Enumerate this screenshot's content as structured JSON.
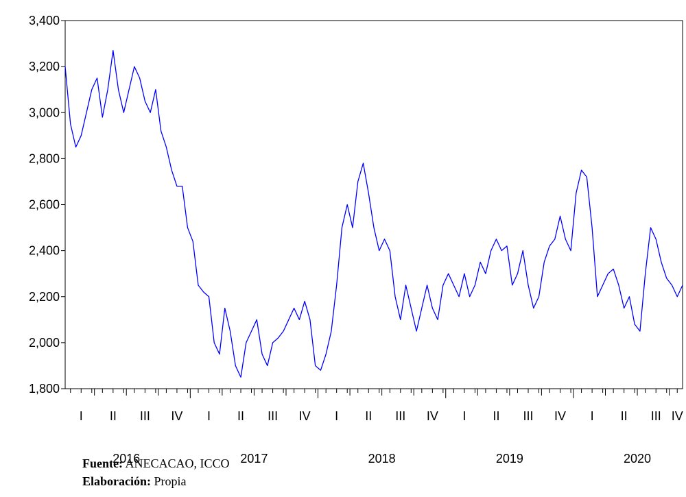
{
  "chart_data": {
    "type": "line",
    "categories": [
      null,
      null,
      null,
      "I",
      null,
      null,
      null,
      null,
      null,
      "II",
      null,
      null,
      null,
      null,
      null,
      "III",
      null,
      null,
      null,
      null,
      null,
      "IV",
      null,
      null,
      null,
      null,
      null,
      "I",
      null,
      null,
      null,
      null,
      null,
      "II",
      null,
      null,
      null,
      null,
      null,
      "III",
      null,
      null,
      null,
      null,
      null,
      "IV",
      null,
      null,
      null,
      null,
      null,
      "I",
      null,
      null,
      null,
      null,
      null,
      "II",
      null,
      null,
      null,
      null,
      null,
      "III",
      null,
      null,
      null,
      null,
      null,
      "IV",
      null,
      null,
      null,
      null,
      null,
      "I",
      null,
      null,
      null,
      null,
      null,
      "II",
      null,
      null,
      null,
      null,
      null,
      "III",
      null,
      null,
      null,
      null,
      null,
      "IV",
      null,
      null,
      null,
      null,
      null,
      "I",
      null,
      null,
      null,
      null,
      null,
      "II",
      null,
      null,
      null,
      null,
      null,
      "III",
      null,
      null,
      null,
      "IV",
      null
    ],
    "years": [
      "2016",
      "2017",
      "2018",
      "2019",
      "2020"
    ],
    "series": [
      {
        "color": "#0000ff",
        "values": [
          3200,
          2950,
          2850,
          2900,
          3000,
          3100,
          3150,
          2980,
          3100,
          3270,
          3100,
          3000,
          3100,
          3200,
          3150,
          3050,
          3000,
          3100,
          2920,
          2850,
          2750,
          2680,
          2680,
          2500,
          2440,
          2250,
          2220,
          2200,
          2000,
          1950,
          2150,
          2050,
          1900,
          1850,
          2000,
          2050,
          2100,
          1950,
          1900,
          2000,
          2020,
          2050,
          2100,
          2150,
          2100,
          2180,
          2100,
          1900,
          1880,
          1950,
          2050,
          2250,
          2500,
          2600,
          2500,
          2700,
          2780,
          2650,
          2500,
          2400,
          2450,
          2400,
          2200,
          2100,
          2250,
          2150,
          2050,
          2150,
          2250,
          2150,
          2100,
          2250,
          2300,
          2250,
          2200,
          2300,
          2200,
          2250,
          2350,
          2300,
          2400,
          2450,
          2400,
          2420,
          2250,
          2300,
          2400,
          2250,
          2150,
          2200,
          2350,
          2420,
          2450,
          2550,
          2450,
          2400,
          2650,
          2750,
          2720,
          2500,
          2200,
          2250,
          2300,
          2320,
          2250,
          2150,
          2200,
          2080,
          2050,
          2300,
          2500,
          2450,
          2350,
          2280,
          2250,
          2200,
          2250
        ]
      }
    ],
    "ylim": [
      1800,
      3400
    ],
    "yticks": [
      {
        "value": 1800,
        "label": "1,800"
      },
      {
        "value": 2000,
        "label": "2,000"
      },
      {
        "value": 2200,
        "label": "2,200"
      },
      {
        "value": 2400,
        "label": "2,400"
      },
      {
        "value": 2600,
        "label": "2,600"
      },
      {
        "value": 2800,
        "label": "2,800"
      },
      {
        "value": 3000,
        "label": "3,000"
      },
      {
        "value": 3200,
        "label": "3,200"
      },
      {
        "value": 3400,
        "label": "3,400"
      }
    ]
  },
  "footer": {
    "source_label": "Fuente:",
    "source": "ANECACAO, ICCO",
    "author_label": "Elaboración:",
    "author": "Propia"
  }
}
